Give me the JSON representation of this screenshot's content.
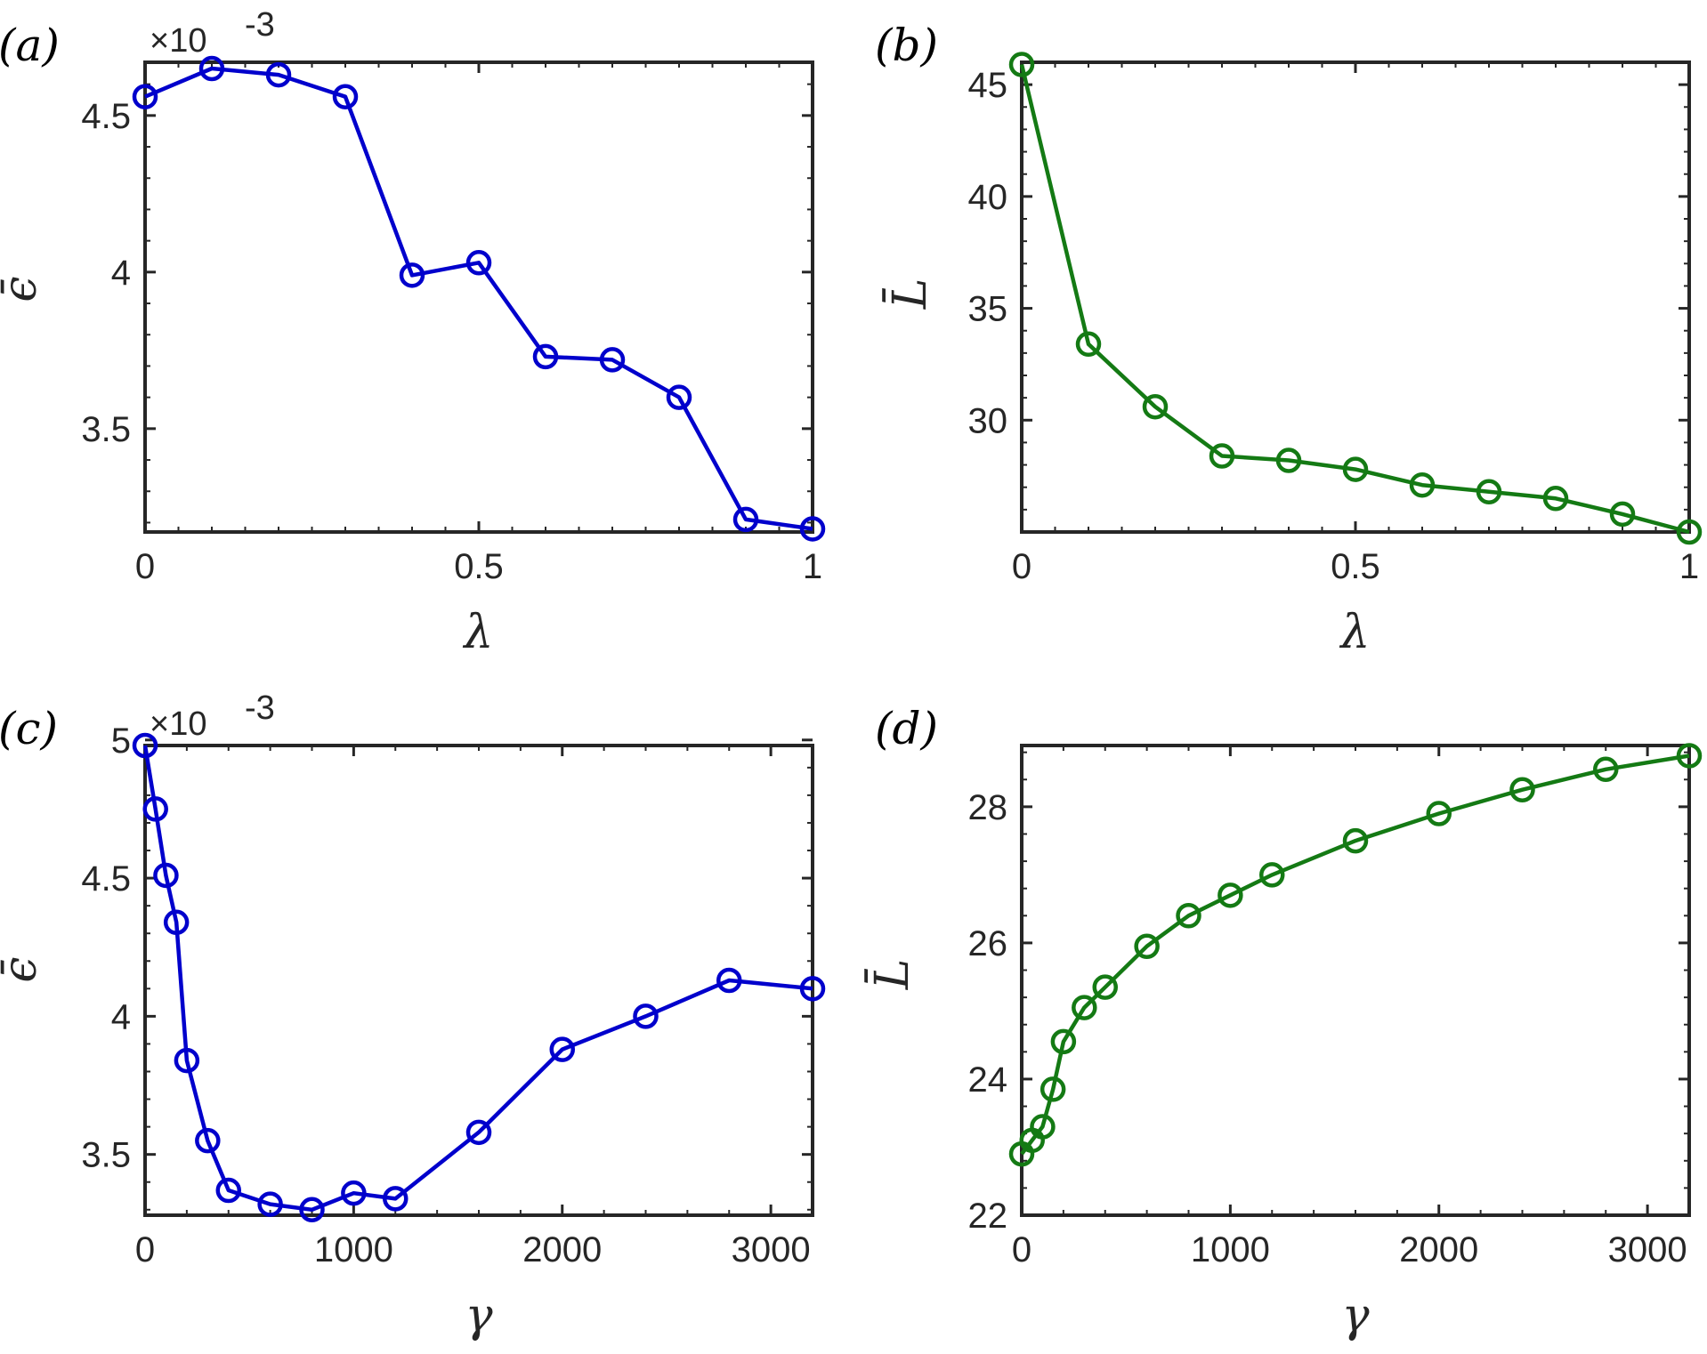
{
  "chart_data": [
    {
      "type": "line",
      "panel_label": "(a)",
      "xlabel": "λ",
      "ylabel": "ϵ̄",
      "exponent_label": "×10",
      "exponent_power": "-3",
      "xlim": [
        0,
        1
      ],
      "ylim": [
        3.17,
        4.67
      ],
      "xticks": [
        0,
        0.5,
        1
      ],
      "xtick_labels": [
        "0",
        "0.5",
        "1"
      ],
      "yticks": [
        3.5,
        4,
        4.5
      ],
      "ytick_labels": [
        "3.5",
        "4",
        "4.5"
      ],
      "color": "#0000cc",
      "x": [
        0,
        0.1,
        0.2,
        0.3,
        0.4,
        0.5,
        0.6,
        0.7,
        0.8,
        0.9,
        1
      ],
      "y": [
        4.56,
        4.65,
        4.63,
        4.56,
        3.99,
        4.03,
        3.73,
        3.72,
        3.6,
        3.21,
        3.18
      ]
    },
    {
      "type": "line",
      "panel_label": "(b)",
      "xlabel": "λ",
      "ylabel": "L̄",
      "xlim": [
        0,
        1
      ],
      "ylim": [
        25,
        46
      ],
      "xticks": [
        0,
        0.5,
        1
      ],
      "xtick_labels": [
        "0",
        "0.5",
        "1"
      ],
      "yticks": [
        30,
        35,
        40,
        45
      ],
      "ytick_labels": [
        "30",
        "35",
        "40",
        "45"
      ],
      "color": "#147a14",
      "x": [
        0,
        0.1,
        0.2,
        0.3,
        0.4,
        0.5,
        0.6,
        0.7,
        0.8,
        0.9,
        1
      ],
      "y": [
        45.9,
        33.4,
        30.6,
        28.4,
        28.2,
        27.8,
        27.1,
        26.8,
        26.5,
        25.8,
        25
      ]
    },
    {
      "type": "line",
      "panel_label": "(c)",
      "xlabel": "γ",
      "ylabel": "ϵ̄",
      "exponent_label": "×10",
      "exponent_power": "-3",
      "xlim": [
        0,
        3200
      ],
      "ylim": [
        3.28,
        4.98
      ],
      "xticks": [
        0,
        1000,
        2000,
        3000
      ],
      "xtick_labels": [
        "0",
        "1000",
        "2000",
        "3000"
      ],
      "yticks": [
        3.5,
        4,
        4.5,
        5
      ],
      "ytick_labels": [
        "3.5",
        "4",
        "4.5",
        "5"
      ],
      "color": "#0000cc",
      "x": [
        0,
        50,
        100,
        150,
        200,
        300,
        400,
        600,
        800,
        1000,
        1200,
        1600,
        2000,
        2400,
        2800,
        3200
      ],
      "y": [
        4.98,
        4.75,
        4.51,
        4.34,
        3.84,
        3.55,
        3.37,
        3.32,
        3.3,
        3.36,
        3.34,
        3.58,
        3.88,
        4.0,
        4.13,
        4.1
      ]
    },
    {
      "type": "line",
      "panel_label": "(d)",
      "xlabel": "γ",
      "ylabel": "L̄",
      "xlim": [
        0,
        3200
      ],
      "ylim": [
        22,
        28.9
      ],
      "xticks": [
        0,
        1000,
        2000,
        3000
      ],
      "xtick_labels": [
        "0",
        "1000",
        "2000",
        "3000"
      ],
      "yticks": [
        22,
        24,
        26,
        28
      ],
      "ytick_labels": [
        "22",
        "24",
        "26",
        "28"
      ],
      "color": "#147a14",
      "x": [
        0,
        50,
        100,
        150,
        200,
        300,
        400,
        600,
        800,
        1000,
        1200,
        1600,
        2000,
        2400,
        2800,
        3200
      ],
      "y": [
        22.9,
        23.1,
        23.3,
        23.85,
        24.55,
        25.05,
        25.35,
        25.95,
        26.4,
        26.7,
        27.0,
        27.5,
        27.9,
        28.25,
        28.55,
        28.75
      ]
    }
  ]
}
